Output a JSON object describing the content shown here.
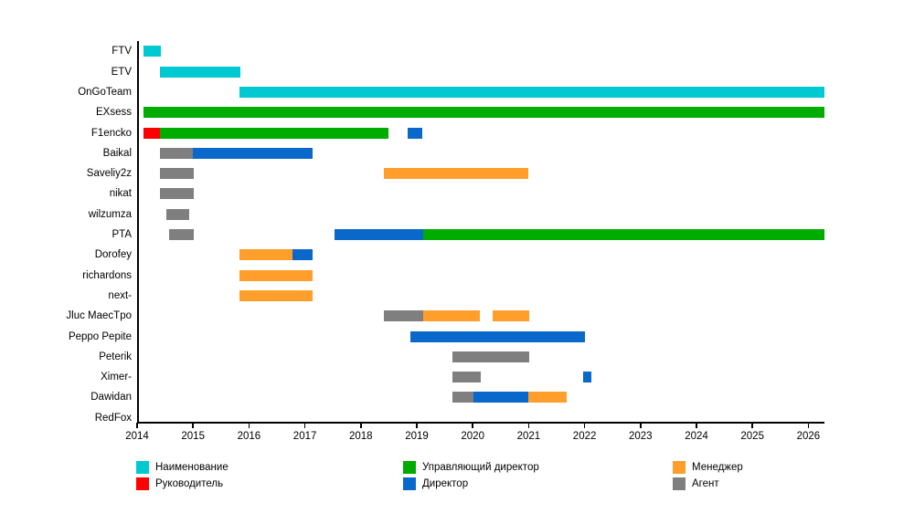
{
  "chart_data": {
    "type": "gantt",
    "title": "",
    "background": "#ffffff",
    "x_axis": {
      "tick_years": [
        2014,
        2015,
        2016,
        2017,
        2018,
        2019,
        2020,
        2021,
        2022,
        2023,
        2024,
        2025,
        2026
      ],
      "min": 2014,
      "max": 2026.29,
      "grid": false
    },
    "legend": {
      "position": "bottom",
      "items": [
        {
          "label": "Наименование",
          "color": "#00c9d1"
        },
        {
          "label": "Руководитель",
          "color": "#fe0000"
        },
        {
          "label": "Управляющий директор",
          "color": "#00ac00"
        },
        {
          "label": "Директор",
          "color": "#0a68cb"
        },
        {
          "label": "Менеджер",
          "color": "#ff9e2a"
        },
        {
          "label": "Агент",
          "color": "#7f7f7f"
        }
      ]
    },
    "rows": [
      {
        "label": "FTV",
        "segments": [
          {
            "role": "Наименование",
            "start": 2014.11,
            "end": 2014.43
          }
        ]
      },
      {
        "label": "ETV",
        "segments": [
          {
            "role": "Наименование",
            "start": 2014.41,
            "end": 2015.84
          }
        ]
      },
      {
        "label": "OnGoTeam",
        "segments": [
          {
            "role": "Наименование",
            "start": 2015.83,
            "end": 2026.28
          }
        ]
      },
      {
        "label": "EXsess",
        "segments": [
          {
            "role": "Управляющий директор",
            "start": 2014.11,
            "end": 2026.28
          }
        ]
      },
      {
        "label": "F1encko",
        "segments": [
          {
            "role": "Руководитель",
            "start": 2014.11,
            "end": 2014.41
          },
          {
            "role": "Управляющий директор",
            "start": 2014.41,
            "end": 2018.5
          },
          {
            "role": "Директор",
            "start": 2018.84,
            "end": 2019.09
          }
        ]
      },
      {
        "label": "Baikal",
        "segments": [
          {
            "role": "Агент",
            "start": 2014.41,
            "end": 2015.0
          },
          {
            "role": "Директор",
            "start": 2015.0,
            "end": 2017.14
          }
        ]
      },
      {
        "label": "Saveliy2z",
        "segments": [
          {
            "role": "Агент",
            "start": 2014.41,
            "end": 2015.01
          },
          {
            "role": "Менеджер",
            "start": 2018.41,
            "end": 2021.0
          }
        ]
      },
      {
        "label": "nikat",
        "segments": [
          {
            "role": "Агент",
            "start": 2014.41,
            "end": 2015.01
          }
        ]
      },
      {
        "label": "wilzumza",
        "segments": [
          {
            "role": "Агент",
            "start": 2014.53,
            "end": 2014.93
          }
        ]
      },
      {
        "label": "PTA",
        "segments": [
          {
            "role": "Агент",
            "start": 2014.58,
            "end": 2015.01
          },
          {
            "role": "Директор",
            "start": 2017.53,
            "end": 2019.12
          },
          {
            "role": "Управляющий директор",
            "start": 2019.12,
            "end": 2026.28
          }
        ]
      },
      {
        "label": "Dorofey",
        "segments": [
          {
            "role": "Менеджер",
            "start": 2015.83,
            "end": 2016.77
          },
          {
            "role": "Директор",
            "start": 2016.77,
            "end": 2017.14
          }
        ]
      },
      {
        "label": "richardons",
        "segments": [
          {
            "role": "Менеджер",
            "start": 2015.83,
            "end": 2017.13
          }
        ]
      },
      {
        "label": "next-",
        "segments": [
          {
            "role": "Менеджер",
            "start": 2015.83,
            "end": 2017.13
          }
        ]
      },
      {
        "label": "Jluc MaecTpo",
        "segments": [
          {
            "role": "Агент",
            "start": 2018.41,
            "end": 2019.11
          },
          {
            "role": "Менеджер",
            "start": 2019.12,
            "end": 2020.12
          },
          {
            "role": "Менеджер",
            "start": 2020.36,
            "end": 2021.01
          }
        ]
      },
      {
        "label": "Peppo Pepite",
        "segments": [
          {
            "role": "Директор",
            "start": 2018.89,
            "end": 2022.01
          }
        ]
      },
      {
        "label": "Peterik",
        "segments": [
          {
            "role": "Агент",
            "start": 2019.63,
            "end": 2021.01
          }
        ]
      },
      {
        "label": "Ximer-",
        "segments": [
          {
            "role": "Агент",
            "start": 2019.63,
            "end": 2020.14
          },
          {
            "role": "Директор",
            "start": 2021.98,
            "end": 2022.12
          }
        ]
      },
      {
        "label": "Dawidan",
        "segments": [
          {
            "role": "Агент",
            "start": 2019.63,
            "end": 2020.01
          },
          {
            "role": "Директор",
            "start": 2020.01,
            "end": 2021.0
          },
          {
            "role": "Менеджер",
            "start": 2021.0,
            "end": 2021.68
          }
        ]
      },
      {
        "label": "RedFox",
        "segments": []
      }
    ]
  }
}
